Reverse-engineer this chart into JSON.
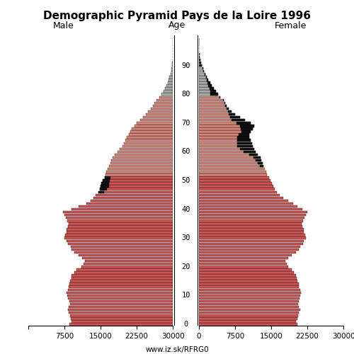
{
  "title": "Demographic Pyramid Pays de la Loire 1996",
  "label_male": "Male",
  "label_female": "Female",
  "label_age": "Age",
  "footer": "www.iz.sk/RFRG0",
  "xlim": 30000,
  "color_red": "#cc5555",
  "color_pink": "#d4857a",
  "color_gray": "#aaaaaa",
  "color_black": "#111111",
  "ages": [
    0,
    1,
    2,
    3,
    4,
    5,
    6,
    7,
    8,
    9,
    10,
    11,
    12,
    13,
    14,
    15,
    16,
    17,
    18,
    19,
    20,
    21,
    22,
    23,
    24,
    25,
    26,
    27,
    28,
    29,
    30,
    31,
    32,
    33,
    34,
    35,
    36,
    37,
    38,
    39,
    40,
    41,
    42,
    43,
    44,
    45,
    46,
    47,
    48,
    49,
    50,
    51,
    52,
    53,
    54,
    55,
    56,
    57,
    58,
    59,
    60,
    61,
    62,
    63,
    64,
    65,
    66,
    67,
    68,
    69,
    70,
    71,
    72,
    73,
    74,
    75,
    76,
    77,
    78,
    79,
    80,
    81,
    82,
    83,
    84,
    85,
    86,
    87,
    88,
    89,
    90,
    91,
    92,
    93,
    94,
    95,
    96,
    97,
    98,
    99
  ],
  "male": [
    21500,
    21000,
    21200,
    21400,
    21600,
    21800,
    21600,
    21400,
    21500,
    21700,
    21900,
    22000,
    21800,
    21600,
    21500,
    21300,
    21100,
    21000,
    20500,
    20000,
    19000,
    18500,
    18200,
    18800,
    19500,
    20500,
    21000,
    21200,
    21800,
    22000,
    22500,
    22300,
    22100,
    22000,
    21800,
    21600,
    21900,
    22200,
    22500,
    22800,
    21000,
    19500,
    18000,
    17000,
    16500,
    16000,
    15500,
    15200,
    15000,
    14800,
    14500,
    14200,
    14000,
    13800,
    13500,
    13200,
    13000,
    12800,
    12500,
    12000,
    11500,
    11000,
    10500,
    10200,
    9800,
    9500,
    9200,
    8800,
    8500,
    8000,
    7500,
    6800,
    6200,
    5600,
    5100,
    4600,
    4200,
    3800,
    3400,
    2800,
    2400,
    2000,
    1700,
    1400,
    1100,
    900,
    700,
    500,
    350,
    250,
    150,
    100,
    70,
    50,
    30,
    20,
    10,
    5,
    3,
    1
  ],
  "female": [
    20500,
    20200,
    20400,
    20600,
    20800,
    21000,
    20800,
    20600,
    20700,
    20900,
    21100,
    21200,
    21000,
    20800,
    20700,
    20500,
    20300,
    20200,
    19700,
    19200,
    18500,
    18200,
    18000,
    18600,
    19200,
    20200,
    20800,
    21000,
    21600,
    21800,
    22200,
    22000,
    21800,
    21700,
    21500,
    21300,
    21600,
    21900,
    22200,
    22500,
    21500,
    20500,
    19500,
    18500,
    17500,
    16800,
    16200,
    15800,
    15500,
    15200,
    14800,
    14500,
    14200,
    14000,
    13700,
    13400,
    13200,
    13000,
    12800,
    12200,
    11800,
    11500,
    11200,
    11000,
    10800,
    10500,
    10500,
    10800,
    11200,
    11500,
    10800,
    9500,
    8500,
    7500,
    6800,
    6200,
    5800,
    5500,
    5200,
    4500,
    4000,
    3500,
    3100,
    2700,
    2300,
    2000,
    1700,
    1400,
    1100,
    850,
    600,
    450,
    320,
    220,
    140,
    90,
    55,
    30,
    15,
    6
  ],
  "male_black_ages": [
    46,
    47,
    48,
    49,
    50,
    51
  ],
  "male_black_vals": [
    1200,
    1500,
    1800,
    1600,
    1400,
    1200
  ],
  "female_black_ages": [
    55,
    56,
    57,
    58,
    59,
    60,
    61,
    62,
    63,
    64,
    65,
    66,
    67,
    68,
    69,
    70,
    71,
    72,
    73,
    74,
    75,
    76,
    77,
    78,
    79,
    80,
    81,
    82,
    83,
    84,
    85,
    86,
    87,
    88,
    89,
    90,
    91,
    92,
    93,
    94,
    95,
    96,
    97,
    98,
    99
  ],
  "female_black_vals": [
    800,
    1000,
    1200,
    1500,
    1800,
    2500,
    3000,
    3200,
    3000,
    2800,
    2500,
    2200,
    2000,
    2500,
    3000,
    3000,
    2700,
    2000,
    1300,
    700,
    400,
    300,
    250,
    200,
    150,
    1600,
    1200,
    900,
    700,
    500,
    350,
    280,
    200,
    150,
    100,
    700,
    500,
    350,
    230,
    150,
    90,
    55,
    30,
    15,
    6
  ],
  "ytick_vals": [
    0,
    10,
    20,
    30,
    40,
    50,
    60,
    70,
    80,
    90
  ],
  "bar_height": 0.85
}
